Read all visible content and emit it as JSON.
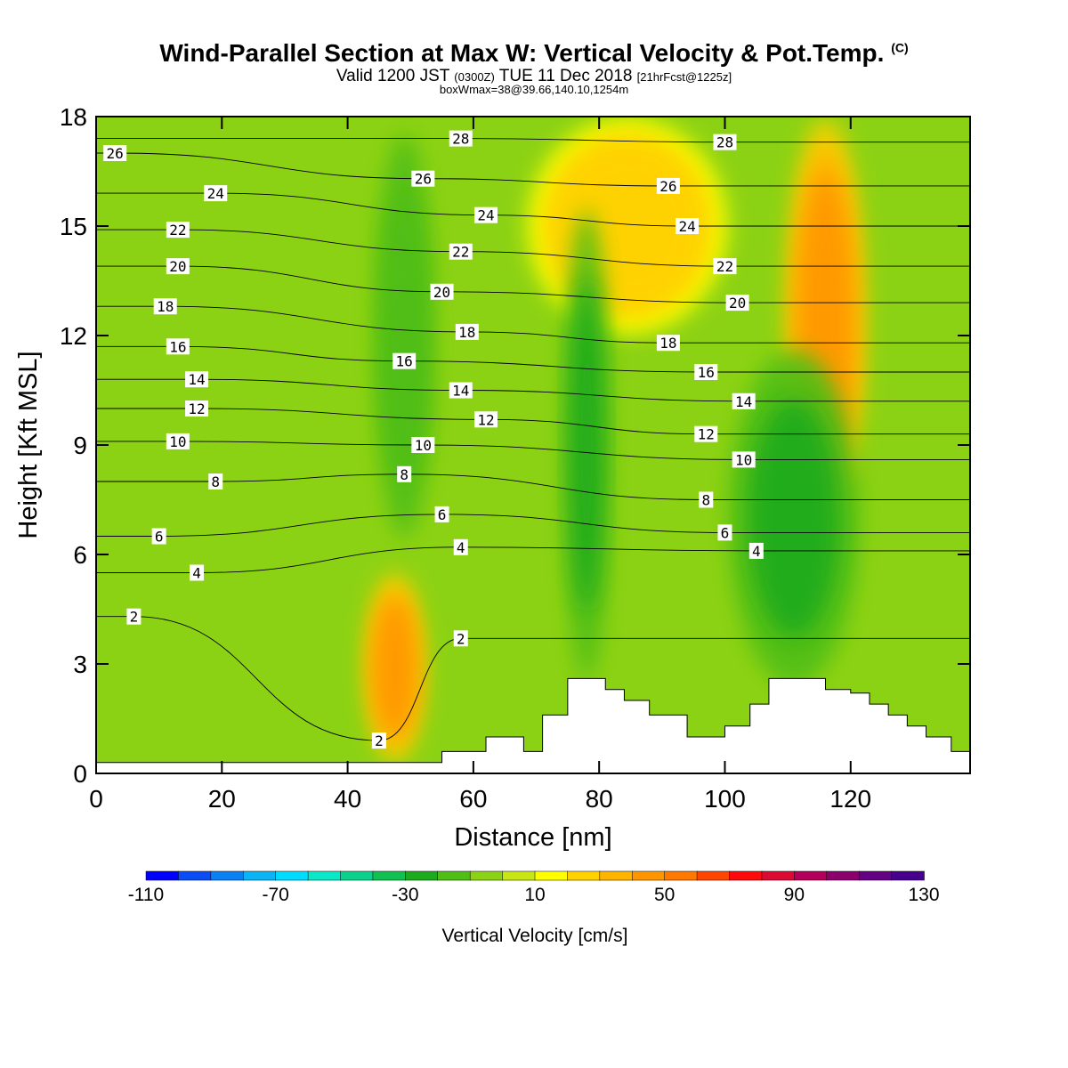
{
  "titles": {
    "main": "Wind-Parallel Section at Max W: Vertical Velocity & Pot.Temp.",
    "main_mark": "(C)",
    "valid_a": "Valid 1200 JST",
    "valid_b": "(0300Z)",
    "valid_c": "TUE 11 Dec 2018",
    "valid_d": "[21hrFcst@1225z]",
    "box": "boxWmax=38@39.66,140.10,1254m"
  },
  "chart_data": {
    "type": "heatmap",
    "xlabel": "Distance [nm]",
    "ylabel": "Height [Kft MSL]",
    "xlim": [
      0,
      139
    ],
    "ylim": [
      0,
      18
    ],
    "x_ticks": [
      0,
      20,
      40,
      60,
      80,
      100,
      120
    ],
    "y_ticks": [
      0,
      3,
      6,
      9,
      12,
      15,
      18
    ],
    "colorbar": {
      "label": "Vertical Velocity [cm/s]",
      "min": -110,
      "max": 130,
      "step": 10,
      "tick_labels": [
        -110,
        -70,
        -30,
        10,
        50,
        90,
        130
      ],
      "colors": [
        "#0000ff",
        "#0a4cf5",
        "#0a80f5",
        "#0ab4f5",
        "#00dcff",
        "#0ae8c8",
        "#0ad28c",
        "#10c050",
        "#1eaa1e",
        "#50be14",
        "#8cd214",
        "#c8e614",
        "#ffff00",
        "#ffd200",
        "#ffb400",
        "#ff9600",
        "#ff7800",
        "#ff4600",
        "#ff0a0a",
        "#dc0a32",
        "#b4005a",
        "#8c006e",
        "#640082",
        "#46008c"
      ]
    },
    "background_range_cm_s": [
      -10,
      0
    ],
    "velocity_features": [
      {
        "kind": "updraft",
        "x_range": [
          43,
          52
        ],
        "z_range": [
          0.3,
          5.5
        ],
        "max_cm_s": 50
      },
      {
        "kind": "updraft",
        "x_range": [
          110,
          122
        ],
        "z_range": [
          7,
          18
        ],
        "max_cm_s": 50
      },
      {
        "kind": "updraft",
        "x_range": [
          69,
          100
        ],
        "z_range": [
          12,
          18
        ],
        "max_cm_s": 30
      },
      {
        "kind": "downdraft",
        "x_range": [
          74,
          82
        ],
        "z_range": [
          2,
          16
        ],
        "min_cm_s": -30
      },
      {
        "kind": "downdraft",
        "x_range": [
          100,
          122
        ],
        "z_range": [
          2,
          12
        ],
        "min_cm_s": -30
      },
      {
        "kind": "downdraft",
        "x_range": [
          44,
          54
        ],
        "z_range": [
          6,
          18
        ],
        "min_cm_s": -20
      }
    ],
    "theta_contour_labels": [
      {
        "text": "26",
        "x": 3,
        "z": 17.0
      },
      {
        "text": "24",
        "x": 19,
        "z": 15.9
      },
      {
        "text": "22",
        "x": 13,
        "z": 14.9
      },
      {
        "text": "20",
        "x": 13,
        "z": 13.9
      },
      {
        "text": "18",
        "x": 11,
        "z": 12.8
      },
      {
        "text": "16",
        "x": 13,
        "z": 11.7
      },
      {
        "text": "14",
        "x": 16,
        "z": 10.8
      },
      {
        "text": "12",
        "x": 16,
        "z": 10.0
      },
      {
        "text": "10",
        "x": 13,
        "z": 9.1
      },
      {
        "text": "8",
        "x": 19,
        "z": 8.0
      },
      {
        "text": "6",
        "x": 10,
        "z": 6.5
      },
      {
        "text": "4",
        "x": 16,
        "z": 5.5
      },
      {
        "text": "2",
        "x": 6,
        "z": 4.3
      },
      {
        "text": "28",
        "x": 58,
        "z": 17.4
      },
      {
        "text": "26",
        "x": 52,
        "z": 16.3
      },
      {
        "text": "24",
        "x": 62,
        "z": 15.3
      },
      {
        "text": "22",
        "x": 58,
        "z": 14.3
      },
      {
        "text": "20",
        "x": 55,
        "z": 13.2
      },
      {
        "text": "18",
        "x": 59,
        "z": 12.1
      },
      {
        "text": "16",
        "x": 49,
        "z": 11.3
      },
      {
        "text": "14",
        "x": 58,
        "z": 10.5
      },
      {
        "text": "12",
        "x": 62,
        "z": 9.7
      },
      {
        "text": "10",
        "x": 52,
        "z": 9.0
      },
      {
        "text": "8",
        "x": 49,
        "z": 8.2
      },
      {
        "text": "6",
        "x": 55,
        "z": 7.1
      },
      {
        "text": "4",
        "x": 58,
        "z": 6.2
      },
      {
        "text": "2",
        "x": 58,
        "z": 3.7
      },
      {
        "text": "2",
        "x": 45,
        "z": 0.9
      },
      {
        "text": "28",
        "x": 100,
        "z": 17.3
      },
      {
        "text": "26",
        "x": 91,
        "z": 16.1
      },
      {
        "text": "24",
        "x": 94,
        "z": 15.0
      },
      {
        "text": "22",
        "x": 100,
        "z": 13.9
      },
      {
        "text": "20",
        "x": 102,
        "z": 12.9
      },
      {
        "text": "18",
        "x": 91,
        "z": 11.8
      },
      {
        "text": "16",
        "x": 97,
        "z": 11.0
      },
      {
        "text": "14",
        "x": 103,
        "z": 10.2
      },
      {
        "text": "12",
        "x": 97,
        "z": 9.3
      },
      {
        "text": "10",
        "x": 103,
        "z": 8.6
      },
      {
        "text": "8",
        "x": 97,
        "z": 7.5
      },
      {
        "text": "6",
        "x": 100,
        "z": 6.6
      },
      {
        "text": "4",
        "x": 105,
        "z": 6.1
      }
    ],
    "terrain_kft": [
      [
        0,
        0.3
      ],
      [
        27,
        0.3
      ],
      [
        27,
        0.3
      ],
      [
        55,
        0.3
      ],
      [
        55,
        0.6
      ],
      [
        62,
        0.6
      ],
      [
        62,
        1.0
      ],
      [
        68,
        1.0
      ],
      [
        68,
        0.6
      ],
      [
        71,
        0.6
      ],
      [
        71,
        1.6
      ],
      [
        75,
        1.6
      ],
      [
        75,
        2.6
      ],
      [
        81,
        2.6
      ],
      [
        81,
        2.3
      ],
      [
        84,
        2.3
      ],
      [
        84,
        2.0
      ],
      [
        88,
        2.0
      ],
      [
        88,
        1.6
      ],
      [
        94,
        1.6
      ],
      [
        94,
        1.0
      ],
      [
        100,
        1.0
      ],
      [
        100,
        1.3
      ],
      [
        104,
        1.3
      ],
      [
        104,
        1.9
      ],
      [
        107,
        1.9
      ],
      [
        107,
        2.6
      ],
      [
        116,
        2.6
      ],
      [
        116,
        2.3
      ],
      [
        120,
        2.3
      ],
      [
        120,
        2.2
      ],
      [
        123,
        2.2
      ],
      [
        123,
        1.9
      ],
      [
        126,
        1.9
      ],
      [
        126,
        1.6
      ],
      [
        129,
        1.6
      ],
      [
        129,
        1.3
      ],
      [
        132,
        1.3
      ],
      [
        132,
        1.0
      ],
      [
        136,
        1.0
      ],
      [
        136,
        0.6
      ],
      [
        139,
        0.6
      ]
    ]
  }
}
